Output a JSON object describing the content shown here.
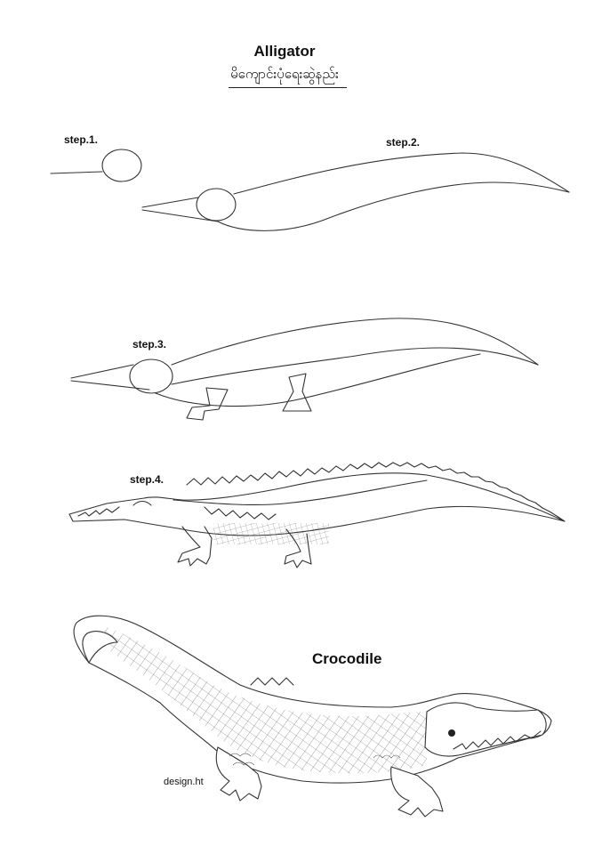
{
  "header": {
    "title": "Alligator",
    "subtitle": "မိကျောင်းပုံရေးဆွဲနည်း"
  },
  "steps": [
    {
      "label": "step.1."
    },
    {
      "label": "step.2."
    },
    {
      "label": "step.3."
    },
    {
      "label": "step.4."
    }
  ],
  "final": {
    "label": "Crocodile"
  },
  "credit": "design.ht"
}
